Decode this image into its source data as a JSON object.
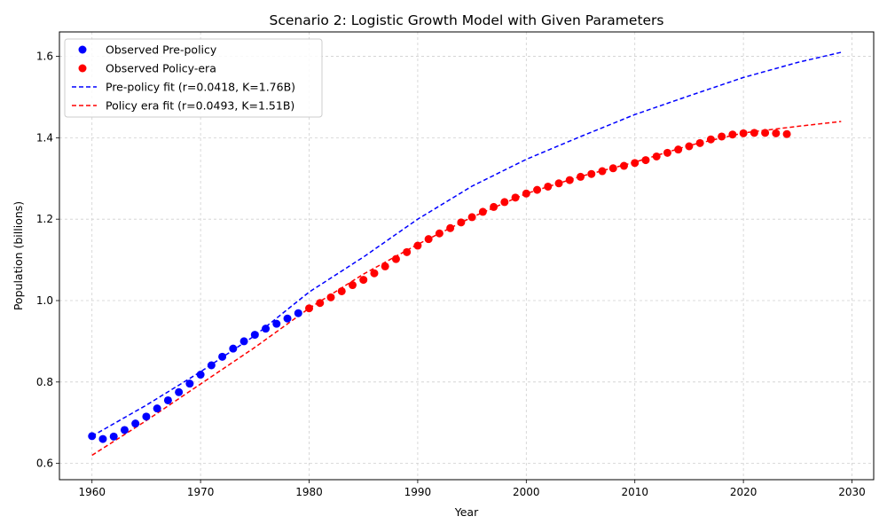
{
  "chart_data": {
    "type": "scatter",
    "title": "Scenario 2: Logistic Growth Model with Given Parameters",
    "xlabel": "Year",
    "ylabel": "Population (billions)",
    "xlim": [
      1957,
      2032
    ],
    "ylim": [
      0.56,
      1.66
    ],
    "xticks": [
      1960,
      1970,
      1980,
      1990,
      2000,
      2010,
      2020,
      2030
    ],
    "yticks": [
      0.6,
      0.8,
      1.0,
      1.2,
      1.4,
      1.6
    ],
    "ytick_labels": [
      "0.6",
      "0.8",
      "1.0",
      "1.2",
      "1.4",
      "1.6"
    ],
    "grid": true,
    "legend_position": "top-left",
    "series": [
      {
        "name": "Observed Pre-policy",
        "kind": "scatter",
        "color": "#0000ff",
        "x": [
          1960,
          1961,
          1962,
          1963,
          1964,
          1965,
          1966,
          1967,
          1968,
          1969,
          1970,
          1971,
          1972,
          1973,
          1974,
          1975,
          1976,
          1977,
          1978,
          1979
        ],
        "y": [
          0.667,
          0.66,
          0.666,
          0.682,
          0.698,
          0.715,
          0.735,
          0.755,
          0.775,
          0.796,
          0.818,
          0.841,
          0.862,
          0.882,
          0.9,
          0.916,
          0.931,
          0.943,
          0.956,
          0.969
        ]
      },
      {
        "name": "Observed Policy-era",
        "kind": "scatter",
        "color": "#ff0000",
        "x": [
          1980,
          1981,
          1982,
          1983,
          1984,
          1985,
          1986,
          1987,
          1988,
          1989,
          1990,
          1991,
          1992,
          1993,
          1994,
          1995,
          1996,
          1997,
          1998,
          1999,
          2000,
          2001,
          2002,
          2003,
          2004,
          2005,
          2006,
          2007,
          2008,
          2009,
          2010,
          2011,
          2012,
          2013,
          2014,
          2015,
          2016,
          2017,
          2018,
          2019,
          2020,
          2021,
          2022,
          2023,
          2024
        ],
        "y": [
          0.981,
          0.994,
          1.008,
          1.023,
          1.038,
          1.051,
          1.067,
          1.084,
          1.102,
          1.119,
          1.135,
          1.151,
          1.165,
          1.178,
          1.192,
          1.205,
          1.218,
          1.23,
          1.242,
          1.253,
          1.263,
          1.272,
          1.28,
          1.288,
          1.296,
          1.304,
          1.311,
          1.318,
          1.325,
          1.331,
          1.338,
          1.345,
          1.354,
          1.363,
          1.371,
          1.379,
          1.387,
          1.396,
          1.403,
          1.408,
          1.411,
          1.412,
          1.412,
          1.411,
          1.409
        ]
      },
      {
        "name": "Pre-policy fit (r=0.0418, K=1.76B)",
        "kind": "line",
        "dash": true,
        "color": "#0000ff",
        "x": [
          1960,
          1965,
          1970,
          1975,
          1980,
          1985,
          1990,
          1995,
          2000,
          2005,
          2010,
          2015,
          2020,
          2025,
          2029
        ],
        "y": [
          0.667,
          0.743,
          0.825,
          0.914,
          1.021,
          1.107,
          1.2,
          1.281,
          1.347,
          1.403,
          1.457,
          1.503,
          1.548,
          1.585,
          1.61
        ]
      },
      {
        "name": "Policy era fit (r=0.0493, K=1.51B)",
        "kind": "line",
        "dash": true,
        "color": "#ff0000",
        "x": [
          1960,
          1965,
          1970,
          1975,
          1980,
          1985,
          1990,
          1995,
          2000,
          2005,
          2010,
          2015,
          2020,
          2025,
          2029
        ],
        "y": [
          0.62,
          0.705,
          0.795,
          0.885,
          0.981,
          1.065,
          1.138,
          1.205,
          1.263,
          1.305,
          1.34,
          1.381,
          1.412,
          1.428,
          1.44
        ]
      }
    ]
  }
}
